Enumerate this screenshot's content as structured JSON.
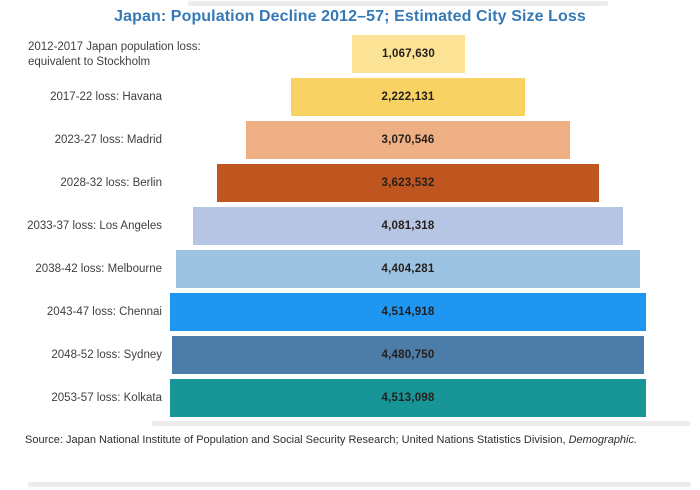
{
  "title": "Japan: Population Decline 2012–57; Estimated City Size Loss",
  "chart_data": {
    "type": "bar",
    "orientation": "horizontal-centered-funnel",
    "title": "Japan: Population Decline 2012–57; Estimated City Size Loss",
    "title_color": "#3579B5",
    "legend": "none",
    "grid": false,
    "categories": [
      "2012-2017 Japan population loss:\nequivalent to Stockholm",
      "2017-22 loss: Havana",
      "2023-27 loss: Madrid",
      "2028-32 loss: Berlin",
      "2033-37 loss: Los Angeles",
      "2038-42 loss: Melbourne",
      "2043-47 loss: Chennai",
      "2048-52 loss: Sydney",
      "2053-57 loss: Kolkata"
    ],
    "values": [
      1067630,
      2222131,
      3070546,
      3623532,
      4081318,
      4404281,
      4514918,
      4480750,
      4513098
    ],
    "value_labels": [
      "1,067,630",
      "2,222,131",
      "3,070,546",
      "3,623,532",
      "4,081,318",
      "4,404,281",
      "4,514,918",
      "4,480,750",
      "4,513,098"
    ],
    "bar_colors": [
      "#FBE294",
      "#F9D264",
      "#EFAF84",
      "#C0561F",
      "#B7C5E4",
      "#9DC3E2",
      "#1E96F2",
      "#4C7CA8",
      "#189697"
    ]
  },
  "footer": {
    "source_prefix": "Source: Japan National Institute of Population and Social Security Research; United Nations Statistics Division,",
    "source_italic": "Demographic."
  }
}
